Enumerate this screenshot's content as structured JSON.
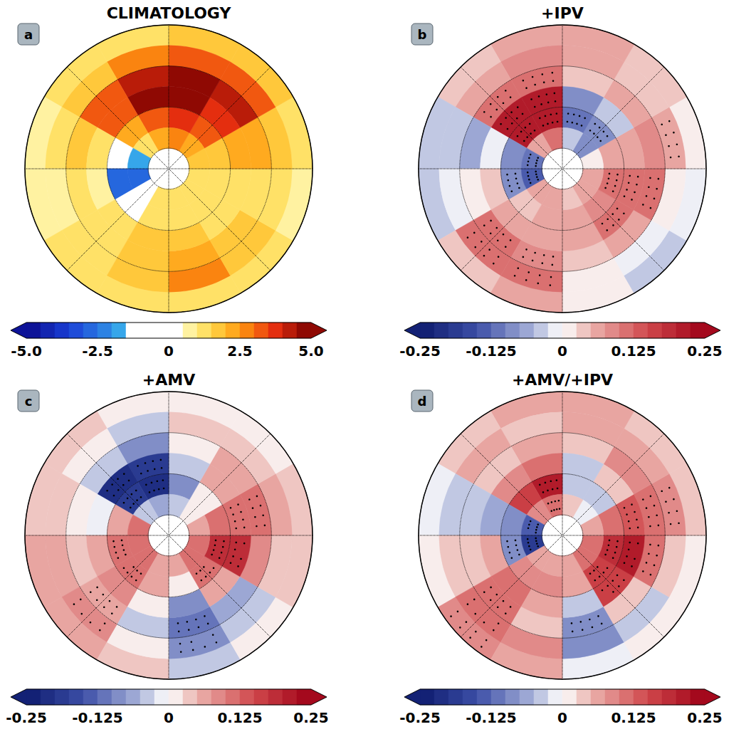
{
  "chart_data": [
    {
      "type": "polar_heatmap",
      "title": "CLIMATOLOGY",
      "label": "a",
      "grid": true,
      "tick_labels": false,
      "lat_range": [
        20,
        90
      ],
      "lon_range": [
        0,
        360
      ],
      "lat_ticks": [
        20,
        40,
        60,
        80
      ],
      "lon_ticks": [
        0,
        45,
        90,
        135,
        180,
        225,
        270,
        315
      ],
      "lat_bands": [
        20,
        30,
        40,
        50,
        60,
        70,
        80
      ],
      "lon_bins": [
        0,
        30,
        60,
        90,
        120,
        150,
        180,
        210,
        240,
        270,
        300,
        330,
        360
      ],
      "values": [
        [
          1,
          1,
          0.8,
          1,
          1.5,
          1.5,
          1.2,
          1,
          0.8,
          0.8,
          1,
          1
        ],
        [
          2.5,
          1.5,
          1,
          1.5,
          3,
          3,
          2.5,
          1.5,
          1,
          0.8,
          1,
          1.5
        ],
        [
          2,
          1.5,
          1,
          2,
          4,
          4.5,
          4,
          3,
          1.5,
          1,
          1,
          1.5
        ],
        [
          1.5,
          1.2,
          1,
          2,
          3.5,
          4.5,
          4.5,
          3,
          1.2,
          0.8,
          1,
          1.5
        ],
        [
          1,
          1,
          1,
          1.5,
          3,
          3.5,
          3,
          2,
          -1,
          -3,
          -1,
          1
        ],
        [
          1,
          1,
          1,
          1.5,
          2,
          2.5,
          2,
          1,
          -2,
          -3,
          0,
          1
        ]
      ],
      "colorbar": {
        "range": [
          -5,
          5
        ],
        "ticks": [
          {
            "value": -5,
            "label": "-5.0"
          },
          {
            "value": -2.5,
            "label": "-2.5"
          },
          0,
          {
            "value": 2.5,
            "label": "2.5"
          },
          {
            "value": 5,
            "label": "5.0"
          }
        ]
      }
    },
    {
      "type": "polar_heatmap",
      "title": "+IPV",
      "label": "b",
      "grid": true,
      "tick_labels": false,
      "lat_range": [
        20,
        90
      ],
      "lon_range": [
        0,
        360
      ],
      "lat_ticks": [
        20,
        40,
        60,
        80
      ],
      "lon_ticks": [
        0,
        45,
        90,
        135,
        180,
        225,
        270,
        315
      ],
      "lat_bands": [
        20,
        30,
        40,
        50,
        60,
        70,
        80
      ],
      "lon_bins": [
        0,
        30,
        60,
        90,
        120,
        150,
        180,
        210,
        240,
        270,
        300,
        330,
        360
      ],
      "values": [
        [
          0.02,
          -0.03,
          -0.02,
          0.02,
          0.03,
          0.05,
          0.05,
          0.03,
          -0.04,
          -0.03,
          0.04,
          0.05
        ],
        [
          0.02,
          -0.02,
          0.02,
          0.05,
          0.04,
          0.05,
          0.08,
          0.05,
          -0.05,
          -0.02,
          0.1,
          0.1
        ],
        [
          0.04,
          0.06,
          0.1,
          0.08,
          0.05,
          0.04,
          0.12,
          0.1,
          -0.06,
          0.02,
          0.1,
          0.08
        ],
        [
          0.05,
          0.1,
          0.12,
          0.06,
          -0.05,
          -0.08,
          0.2,
          0.22,
          -0.02,
          0.03,
          0.06,
          0.05
        ],
        [
          0.05,
          0.08,
          0.1,
          0.05,
          -0.1,
          -0.12,
          0.2,
          0.2,
          -0.08,
          -0.1,
          0.04,
          0.06
        ],
        [
          0.04,
          0.06,
          0.06,
          0.02,
          -0.08,
          -0.05,
          0.1,
          0.05,
          -0.12,
          -0.15,
          0.05,
          0.05
        ]
      ],
      "stippling": [
        [
          0,
          0,
          0,
          0,
          0,
          0,
          0,
          0,
          0,
          0,
          0,
          0
        ],
        [
          0,
          0,
          0,
          1,
          0,
          0,
          0,
          0,
          0,
          0,
          1,
          1
        ],
        [
          0,
          0,
          1,
          0,
          0,
          0,
          1,
          1,
          0,
          0,
          1,
          1
        ],
        [
          0,
          1,
          1,
          0,
          0,
          0,
          1,
          1,
          0,
          0,
          0,
          0
        ],
        [
          0,
          0,
          1,
          0,
          1,
          1,
          1,
          1,
          0,
          1,
          0,
          0
        ],
        [
          0,
          0,
          0,
          0,
          0,
          0,
          0,
          0,
          1,
          1,
          0,
          0
        ]
      ],
      "colorbar": {
        "range": [
          -0.25,
          0.25
        ],
        "ticks": [
          -0.25,
          -0.125,
          0,
          0.125,
          0.25
        ]
      }
    },
    {
      "type": "polar_heatmap",
      "title": "+AMV",
      "label": "c",
      "grid": true,
      "tick_labels": false,
      "lat_range": [
        20,
        90
      ],
      "lon_range": [
        0,
        360
      ],
      "lat_ticks": [
        20,
        40,
        60,
        80
      ],
      "lon_ticks": [
        0,
        45,
        90,
        135,
        180,
        225,
        270,
        315
      ],
      "lat_bands": [
        20,
        30,
        40,
        50,
        60,
        70,
        80
      ],
      "lon_bins": [
        0,
        30,
        60,
        90,
        120,
        150,
        180,
        210,
        240,
        270,
        300,
        330,
        360
      ],
      "values": [
        [
          -0.03,
          0.02,
          0.03,
          0.03,
          0.02,
          0.02,
          0.02,
          0.03,
          0.03,
          0.05,
          0.06,
          0.03
        ],
        [
          -0.1,
          -0.05,
          0.04,
          0.05,
          0.04,
          0.03,
          -0.03,
          0.02,
          0.03,
          0.06,
          0.08,
          0.02
        ],
        [
          -0.12,
          -0.06,
          0.08,
          0.1,
          0.05,
          0.02,
          -0.08,
          -0.05,
          0.02,
          0.04,
          0.06,
          -0.03
        ],
        [
          -0.08,
          0.05,
          0.18,
          0.12,
          0.06,
          -0.05,
          -0.18,
          -0.2,
          -0.02,
          0.05,
          0.08,
          0.02
        ],
        [
          0.02,
          0.12,
          0.18,
          0.1,
          0.02,
          -0.08,
          -0.2,
          -0.18,
          0.05,
          0.1,
          0.12,
          0.06
        ],
        [
          0.05,
          0.1,
          0.1,
          0.06,
          0,
          -0.03,
          -0.06,
          -0.05,
          0.1,
          0.12,
          0.1,
          0.06
        ]
      ],
      "stippling": [
        [
          0,
          0,
          0,
          0,
          0,
          0,
          0,
          0,
          0,
          0,
          0,
          0
        ],
        [
          1,
          0,
          0,
          0,
          0,
          0,
          0,
          0,
          0,
          0,
          1,
          0
        ],
        [
          1,
          0,
          0,
          1,
          0,
          0,
          0,
          0,
          0,
          0,
          1,
          0
        ],
        [
          0,
          0,
          1,
          1,
          0,
          0,
          1,
          1,
          0,
          0,
          0,
          0
        ],
        [
          0,
          1,
          1,
          0,
          0,
          0,
          1,
          1,
          0,
          1,
          1,
          0
        ],
        [
          0,
          0,
          0,
          0,
          0,
          0,
          0,
          0,
          0,
          0,
          0,
          0
        ]
      ],
      "colorbar": {
        "range": [
          -0.25,
          0.25
        ],
        "ticks": [
          -0.25,
          -0.125,
          0,
          0.125,
          0.25
        ]
      }
    },
    {
      "type": "polar_heatmap",
      "title": "+AMV/+IPV",
      "label": "d",
      "grid": true,
      "tick_labels": false,
      "lat_range": [
        20,
        90
      ],
      "lon_range": [
        0,
        360
      ],
      "lat_ticks": [
        20,
        40,
        60,
        80
      ],
      "lon_ticks": [
        0,
        45,
        90,
        135,
        180,
        225,
        270,
        315
      ],
      "lat_bands": [
        20,
        30,
        40,
        50,
        60,
        70,
        80
      ],
      "lon_bins": [
        0,
        30,
        60,
        90,
        120,
        150,
        180,
        210,
        240,
        270,
        300,
        330,
        360
      ],
      "values": [
        [
          -0.02,
          0,
          0.02,
          0.04,
          0.04,
          0.05,
          0.05,
          0.04,
          -0.02,
          0.01,
          0.08,
          0.06
        ],
        [
          -0.08,
          -0.05,
          0.04,
          0.08,
          0.06,
          0.05,
          0.04,
          0.05,
          -0.03,
          0.03,
          0.12,
          0.08
        ],
        [
          -0.1,
          0.04,
          0.12,
          0.12,
          0.08,
          0.03,
          0.06,
          0.04,
          -0.05,
          0.04,
          0.12,
          0.03
        ],
        [
          -0.03,
          0.15,
          0.2,
          0.14,
          0.04,
          -0.05,
          0.12,
          0.08,
          -0.06,
          0.05,
          0.1,
          0.05
        ],
        [
          0.05,
          0.15,
          0.18,
          0.12,
          -0.04,
          -0.04,
          0.2,
          0.16,
          -0.08,
          -0.1,
          0.08,
          0.08
        ],
        [
          0.06,
          0.1,
          0.1,
          0.06,
          -0.02,
          0.03,
          0.12,
          0.08,
          -0.15,
          -0.18,
          0.06,
          0.06
        ]
      ],
      "stippling": [
        [
          0,
          0,
          0,
          0,
          0,
          0,
          0,
          0,
          0,
          0,
          1,
          0
        ],
        [
          0,
          0,
          0,
          1,
          0,
          0,
          0,
          0,
          0,
          0,
          1,
          0
        ],
        [
          1,
          0,
          1,
          1,
          0,
          0,
          0,
          0,
          0,
          0,
          1,
          0
        ],
        [
          0,
          1,
          1,
          1,
          0,
          0,
          0,
          0,
          0,
          0,
          0,
          0
        ],
        [
          0,
          1,
          1,
          0,
          0,
          0,
          1,
          0,
          0,
          1,
          0,
          0
        ],
        [
          0,
          0,
          0,
          0,
          0,
          0,
          1,
          0,
          1,
          1,
          0,
          0
        ]
      ],
      "colorbar": {
        "range": [
          -0.25,
          0.25
        ],
        "ticks": [
          -0.25,
          -0.125,
          0,
          0.125,
          0.25
        ]
      }
    }
  ]
}
